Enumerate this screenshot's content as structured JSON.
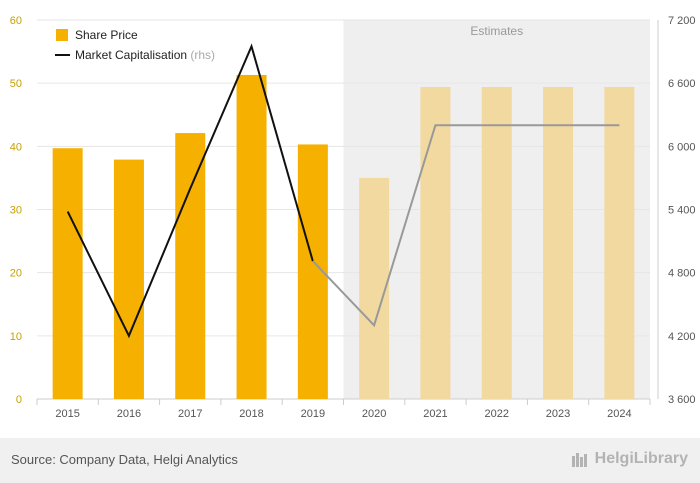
{
  "chart_data": {
    "type": "bar+line",
    "categories": [
      "2015",
      "2016",
      "2017",
      "2018",
      "2019",
      "2020",
      "2021",
      "2022",
      "2023",
      "2024"
    ],
    "series": [
      {
        "name": "Share Price",
        "axis": "left",
        "kind": "bar",
        "values": [
          39.7,
          37.9,
          42.1,
          51.3,
          40.3,
          35.0,
          49.4,
          49.4,
          49.4,
          49.4
        ],
        "color": "#f5b000",
        "estimate_color": "#f2d9a0"
      },
      {
        "name": "Market Capitalisation",
        "name_suffix": "(rhs)",
        "axis": "right",
        "kind": "line",
        "values": [
          5380,
          4200,
          5600,
          6950,
          4910,
          4300,
          6200,
          6200,
          6200,
          6200
        ],
        "color": "#111111",
        "estimate_color": "#999999"
      }
    ],
    "estimates_from_index": 5,
    "estimates_label": "Estimates",
    "ylim_left": [
      0,
      60
    ],
    "yticks_left": [
      "0",
      "10",
      "20",
      "30",
      "40",
      "50",
      "60"
    ],
    "ylim_right": [
      3600,
      7200
    ],
    "yticks_right": [
      "3 600",
      "4 200",
      "4 800",
      "5 400",
      "6 000",
      "6 600",
      "7 200"
    ],
    "grid": true,
    "legend_position": "top-left"
  },
  "footer": {
    "source": "Source: Company Data, Helgi Analytics",
    "brand": "HelgiLibrary"
  }
}
